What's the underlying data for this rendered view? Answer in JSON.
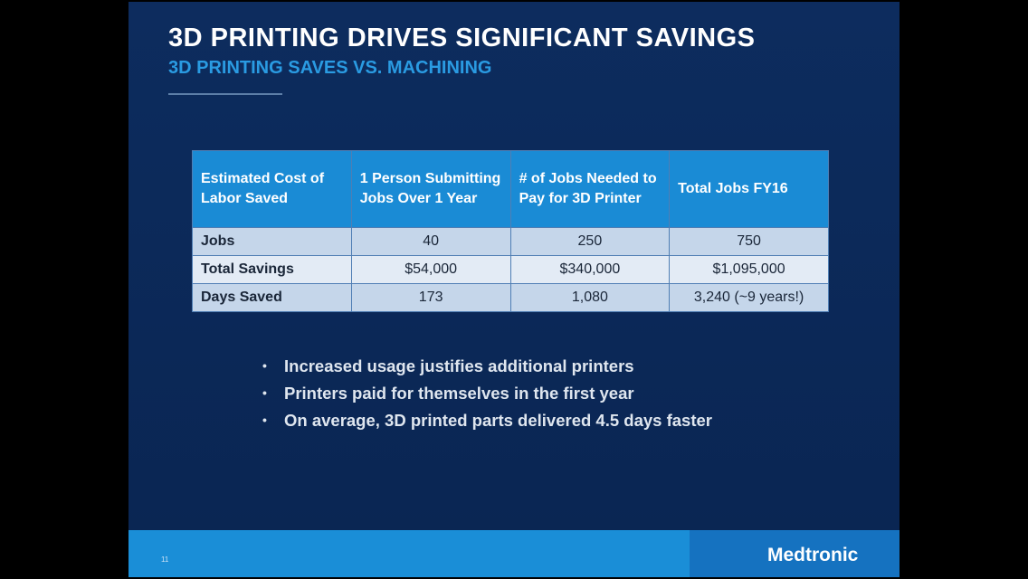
{
  "header": {
    "title": "3D PRINTING DRIVES SIGNIFICANT SAVINGS",
    "subtitle": "3D PRINTING SAVES VS. MACHINING"
  },
  "table": {
    "header": [
      "Estimated Cost of Labor Saved",
      "1 Person Submitting Jobs Over 1 Year",
      "# of Jobs Needed to Pay for 3D Printer",
      "Total Jobs FY16"
    ],
    "rows": [
      [
        "Jobs",
        "40",
        "250",
        "750"
      ],
      [
        "Total Savings",
        "$54,000",
        "$340,000",
        "$1,095,000"
      ],
      [
        "Days Saved",
        "173",
        "1,080",
        "3,240 (~9 years!)"
      ]
    ]
  },
  "bullets": [
    "Increased usage justifies additional printers",
    "Printers paid for themselves in the first year",
    "On average, 3D printed parts delivered 4.5 days faster"
  ],
  "footer": {
    "page_number": "11",
    "logo": "Medtronic"
  }
}
